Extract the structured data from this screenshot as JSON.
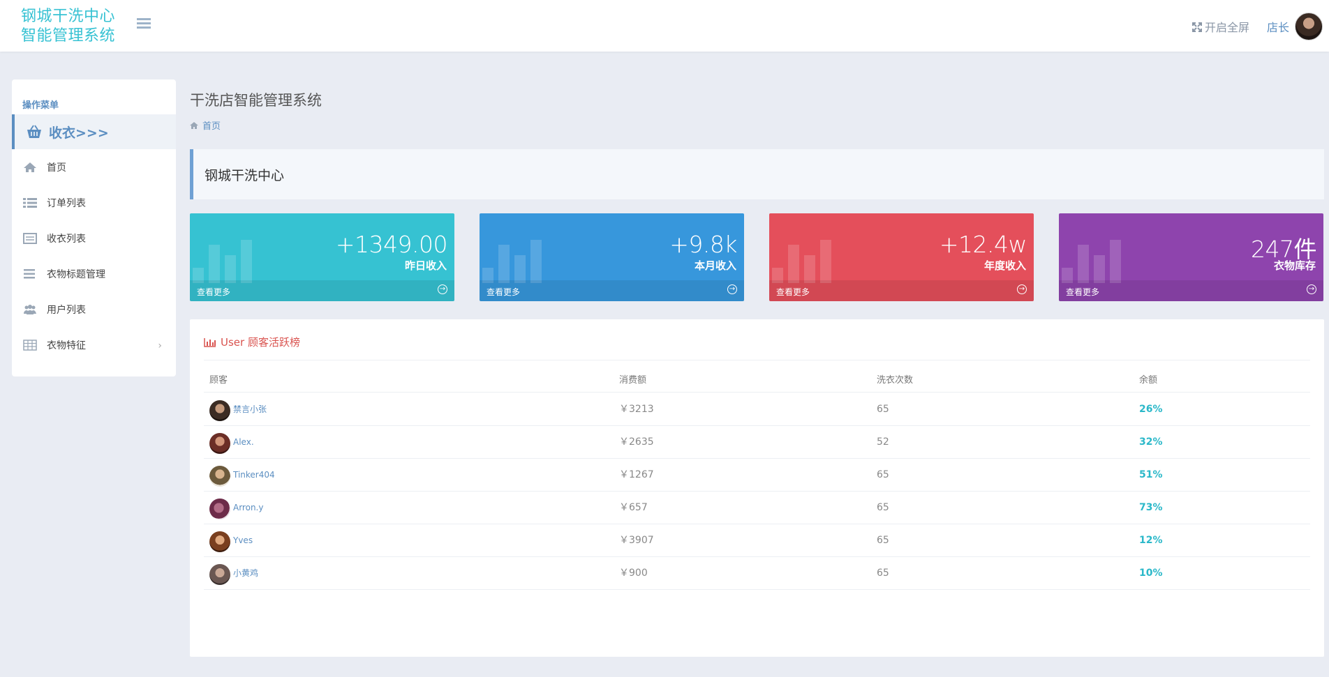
{
  "header": {
    "brand_line1": "钢城干洗中心",
    "brand_line2": "智能管理系统",
    "fullscreen_label": "开启全屏",
    "user_name": "店长"
  },
  "sidebar": {
    "title": "操作菜单",
    "main_item": "收衣>>>",
    "items": [
      {
        "label": "首页",
        "icon": "home-icon"
      },
      {
        "label": "订单列表",
        "icon": "list-icon"
      },
      {
        "label": "收衣列表",
        "icon": "card-list-icon"
      },
      {
        "label": "衣物标题管理",
        "icon": "menu-lines-icon"
      },
      {
        "label": "用户列表",
        "icon": "users-icon"
      },
      {
        "label": "衣物特征",
        "icon": "table-icon"
      }
    ]
  },
  "main": {
    "page_title": "干洗店智能管理系统",
    "breadcrumb": "首页",
    "notice": "钢城干洗中心"
  },
  "cards": [
    {
      "value": "+1349.00",
      "label": "昨日收入",
      "more": "查看更多",
      "color": "#36c2d2"
    },
    {
      "value": "+9.8k",
      "label": "本月收入",
      "more": "查看更多",
      "color": "#3797dc"
    },
    {
      "value": "+12.4w",
      "label": "年度收入",
      "more": "查看更多",
      "color": "#e44f5b"
    },
    {
      "value": "247件",
      "label": "衣物库存",
      "more": "查看更多",
      "color": "#8e44ad"
    }
  ],
  "ranking": {
    "title": "User 顾客活跃榜",
    "columns": [
      "顾客",
      "消费额",
      "洗衣次数",
      "余额"
    ],
    "rows": [
      {
        "name": "禁言小张",
        "amount": "￥3213",
        "times": "65",
        "balance": "26%"
      },
      {
        "name": "Alex.",
        "amount": "￥2635",
        "times": "52",
        "balance": "32%"
      },
      {
        "name": "Tinker404",
        "amount": "￥1267",
        "times": "65",
        "balance": "51%"
      },
      {
        "name": "Arron.y",
        "amount": "￥657",
        "times": "65",
        "balance": "73%"
      },
      {
        "name": "Yves",
        "amount": "￥3907",
        "times": "65",
        "balance": "12%"
      },
      {
        "name": "小黄鸡",
        "amount": "￥900",
        "times": "65",
        "balance": "10%"
      }
    ]
  }
}
